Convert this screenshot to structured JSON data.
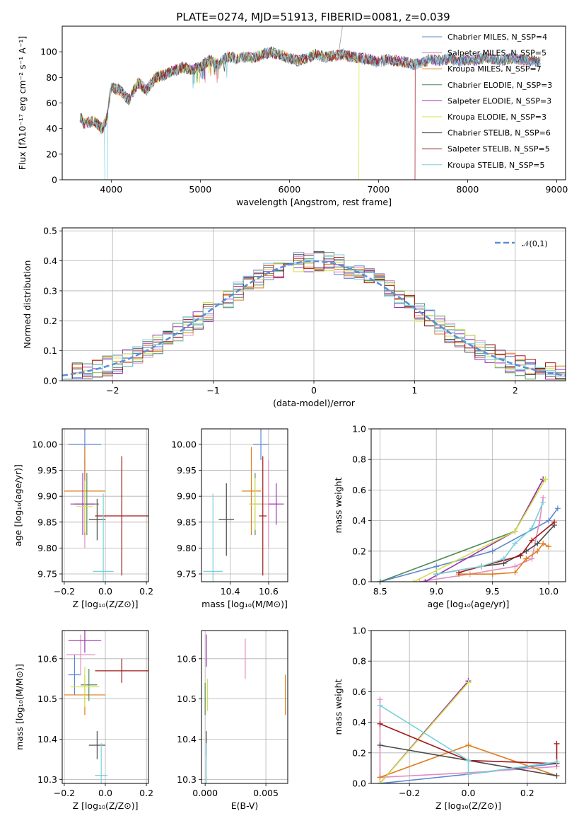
{
  "chart_data": [
    {
      "type": "line",
      "id": "spectrum",
      "title": "PLATE=0274, MJD=51913, FIBERID=0081, z=0.039",
      "xlabel": "wavelength [Angstrom, rest frame]",
      "ylabel": "Flux [fλ10⁻¹⁷ erg cm⁻² s⁻¹ A⁻¹]",
      "xlim": [
        3450,
        9100
      ],
      "ylim": [
        0,
        120
      ],
      "xticks": [
        "4000",
        "5000",
        "6000",
        "7000",
        "8000",
        "9000"
      ],
      "yticks": [
        "0",
        "20",
        "40",
        "60",
        "80",
        "100"
      ],
      "grid": false,
      "legend_position": "top-right",
      "legend": [
        {
          "label": "Chabrier MILES, N_SSP=4",
          "color": "#5b86d0"
        },
        {
          "label": "Salpeter MILES, N_SSP=5",
          "color": "#e28cc2"
        },
        {
          "label": "Kroupa MILES, N_SSP=7",
          "color": "#e07b1a"
        },
        {
          "label": "Chabrier ELODIE, N_SSP=3",
          "color": "#4f8a5b"
        },
        {
          "label": "Salpeter ELODIE, N_SSP=3",
          "color": "#9b30b0"
        },
        {
          "label": "Kroupa ELODIE, N_SSP=3",
          "color": "#d4e04a"
        },
        {
          "label": "Chabrier STELIB, N_SSP=6",
          "color": "#4a4a4a"
        },
        {
          "label": "Salpeter STELIB, N_SSP=5",
          "color": "#a01818"
        },
        {
          "label": "Kroupa STELIB, N_SSP=5",
          "color": "#79d0dc"
        }
      ],
      "envelope": {
        "x": [
          3650,
          3700,
          3800,
          3900,
          3950,
          4000,
          4100,
          4200,
          4300,
          4400,
          4500,
          4600,
          4700,
          4800,
          4900,
          5000,
          5100,
          5200,
          5300,
          5400,
          5500,
          5600,
          5700,
          5800,
          5900,
          6000,
          6100,
          6200,
          6300,
          6400,
          6500,
          6600,
          6700,
          6800,
          6900,
          7000,
          7100,
          7200,
          7300,
          7400,
          7500,
          7600,
          7700,
          7800,
          7900,
          8000,
          8100,
          8200,
          8300,
          8400,
          8500,
          8600,
          8700,
          8800
        ],
        "y": [
          50,
          44,
          46,
          40,
          48,
          72,
          70,
          62,
          76,
          70,
          80,
          82,
          85,
          88,
          86,
          88,
          94,
          90,
          96,
          95,
          96,
          95,
          98,
          100,
          97,
          95,
          93,
          95,
          98,
          96,
          97,
          98,
          96,
          95,
          94,
          92,
          94,
          93,
          92,
          90,
          92,
          94,
          93,
          95,
          92,
          94,
          93,
          96,
          94,
          93,
          95,
          94,
          93,
          92
        ]
      },
      "cutoffs": [
        {
          "color": "#d4e04a",
          "x": 6780
        },
        {
          "color": "#a01818",
          "x": 7410
        },
        {
          "color": "#79d0dc",
          "x": 3940
        }
      ]
    },
    {
      "type": "bar",
      "id": "residual-hist",
      "title": "",
      "xlabel": "(data-model)/error",
      "ylabel": "Normed distribution",
      "xlim": [
        -2.5,
        2.5
      ],
      "ylim": [
        0,
        0.51
      ],
      "xticks": [
        "−2",
        "−1",
        "0",
        "1",
        "2"
      ],
      "yticks": [
        "0.0",
        "0.1",
        "0.2",
        "0.3",
        "0.4",
        "0.5"
      ],
      "grid": true,
      "legend_position": "top-right",
      "legend_label": "𝒩(0,1)",
      "normal_color": "#5b8fd6"
    },
    {
      "type": "scatter",
      "id": "age-vs-Z",
      "xlabel": "Z [log₁₀(Z/Z⊙)]",
      "ylabel": "age  [log₁₀(age/yr)]",
      "xlim": [
        -0.21,
        0.21
      ],
      "ylim": [
        9.735,
        10.03
      ],
      "xticks": [
        "−0.2",
        "0.0",
        "0.2"
      ],
      "yticks": [
        "9.75",
        "9.80",
        "9.85",
        "9.90",
        "9.95",
        "10.00"
      ],
      "grid": true,
      "points": [
        {
          "color": "#5b86d0",
          "x": -0.1,
          "y": 10.0,
          "xerr": 0.08,
          "yerr": 0.07
        },
        {
          "color": "#e28cc2",
          "x": -0.1,
          "y": 9.885,
          "xerr": 0.05,
          "yerr": 0.085
        },
        {
          "color": "#e07b1a",
          "x": -0.1,
          "y": 9.91,
          "xerr": 0.1,
          "yerr": 0.085
        },
        {
          "color": "#4f8a5b",
          "x": -0.09,
          "y": 9.885,
          "xerr": 0.06,
          "yerr": 0.06
        },
        {
          "color": "#9b30b0",
          "x": -0.11,
          "y": 9.885,
          "xerr": 0.06,
          "yerr": 0.06
        },
        {
          "color": "#d4e04a",
          "x": -0.1,
          "y": 9.88,
          "xerr": 0.04,
          "yerr": 0.05
        },
        {
          "color": "#4a4a4a",
          "x": -0.04,
          "y": 9.855,
          "xerr": 0.04,
          "yerr": 0.04
        },
        {
          "color": "#a01818",
          "x": 0.08,
          "y": 9.862,
          "xerr": 0.13,
          "yerr": 0.115
        },
        {
          "color": "#79d0dc",
          "x": -0.01,
          "y": 9.755,
          "xerr": 0.05,
          "yerr": 0.15
        }
      ]
    },
    {
      "type": "scatter",
      "id": "age-vs-mass",
      "xlabel": "mass [log₁₀(M/M⊙)]",
      "ylabel": "",
      "xlim": [
        10.25,
        10.7
      ],
      "ylim": [
        9.735,
        10.03
      ],
      "xticks": [
        "10.4",
        "10.6"
      ],
      "yticks": [
        "9.75",
        "9.80",
        "9.85",
        "9.90",
        "9.95",
        "10.00"
      ],
      "grid": true,
      "points": [
        {
          "color": "#5b86d0",
          "x": 10.56,
          "y": 10.0,
          "xerr": 0.04,
          "yerr": 0.03
        },
        {
          "color": "#e28cc2",
          "x": 10.6,
          "y": 9.885,
          "xerr": 0.05,
          "yerr": 0.085
        },
        {
          "color": "#e07b1a",
          "x": 10.51,
          "y": 9.91,
          "xerr": 0.05,
          "yerr": 0.085
        },
        {
          "color": "#4f8a5b",
          "x": 10.53,
          "y": 9.885,
          "xerr": 0.03,
          "yerr": 0.06
        },
        {
          "color": "#9b30b0",
          "x": 10.64,
          "y": 9.885,
          "xerr": 0.04,
          "yerr": 0.04
        },
        {
          "color": "#d4e04a",
          "x": 10.53,
          "y": 9.885,
          "xerr": 0.03,
          "yerr": 0.05
        },
        {
          "color": "#4a4a4a",
          "x": 10.38,
          "y": 9.855,
          "xerr": 0.04,
          "yerr": 0.07
        },
        {
          "color": "#a01818",
          "x": 10.57,
          "y": 9.862,
          "xerr": 0.02,
          "yerr": 0.115
        },
        {
          "color": "#79d0dc",
          "x": 10.31,
          "y": 9.755,
          "xerr": 0.05,
          "yerr": 0.15
        }
      ]
    },
    {
      "type": "line",
      "id": "massweight-vs-age",
      "xlabel": "age  [log₁₀(age/yr)]",
      "ylabel": "mass weight",
      "xlim": [
        8.42,
        10.15
      ],
      "ylim": [
        0,
        1.0
      ],
      "xticks": [
        "8.5",
        "9.0",
        "9.5",
        "10.0"
      ],
      "yticks": [
        "0.0",
        "0.2",
        "0.4",
        "0.6",
        "0.8",
        "1.0"
      ],
      "grid": true,
      "series": [
        {
          "color": "#5b86d0",
          "x": [
            8.5,
            9.0,
            9.5,
            10.0,
            10.08
          ],
          "y": [
            0.0,
            0.1,
            0.2,
            0.4,
            0.48
          ]
        },
        {
          "color": "#e28cc2",
          "x": [
            8.85,
            9.3,
            9.7,
            9.85,
            9.92,
            9.95
          ],
          "y": [
            0.0,
            0.05,
            0.1,
            0.15,
            0.4,
            0.55
          ]
        },
        {
          "color": "#e07b1a",
          "x": [
            9.2,
            9.5,
            9.7,
            9.8,
            9.9,
            9.95,
            10.0
          ],
          "y": [
            0.05,
            0.05,
            0.06,
            0.15,
            0.2,
            0.25,
            0.23
          ]
        },
        {
          "color": "#4f8a5b",
          "x": [
            8.5,
            9.7,
            9.95
          ],
          "y": [
            0.0,
            0.33,
            0.67
          ]
        },
        {
          "color": "#9b30b0",
          "x": [
            8.9,
            9.7,
            9.95
          ],
          "y": [
            0.0,
            0.33,
            0.67
          ]
        },
        {
          "color": "#d4e04a",
          "x": [
            8.8,
            9.7,
            9.97
          ],
          "y": [
            0.0,
            0.33,
            0.67
          ]
        },
        {
          "color": "#4a4a4a",
          "x": [
            9.0,
            9.4,
            9.6,
            9.8,
            9.9,
            10.05
          ],
          "y": [
            0.05,
            0.1,
            0.12,
            0.2,
            0.25,
            0.37
          ]
        },
        {
          "color": "#a01818",
          "x": [
            9.2,
            9.4,
            9.6,
            9.75,
            9.85,
            10.05
          ],
          "y": [
            0.06,
            0.1,
            0.14,
            0.17,
            0.27,
            0.39
          ]
        },
        {
          "color": "#79d0dc",
          "x": [
            9.0,
            9.4,
            9.6,
            9.7,
            9.85,
            9.95
          ],
          "y": [
            0.05,
            0.1,
            0.15,
            0.25,
            0.35,
            0.52
          ]
        }
      ]
    },
    {
      "type": "scatter",
      "id": "mass-vs-Z",
      "xlabel": "Z [log₁₀(Z/Z⊙)]",
      "ylabel": "mass [log₁₀(M/M⊙)]",
      "xlim": [
        -0.21,
        0.21
      ],
      "ylim": [
        10.29,
        10.67
      ],
      "xticks": [
        "−0.2",
        "0.0",
        "0.2"
      ],
      "yticks": [
        "10.3",
        "10.4",
        "10.5",
        "10.6"
      ],
      "grid": true,
      "points": [
        {
          "color": "#5b86d0",
          "x": -0.15,
          "y": 10.56,
          "xerr": 0.03,
          "yerr": 0.05
        },
        {
          "color": "#e28cc2",
          "x": -0.12,
          "y": 10.61,
          "xerr": 0.07,
          "yerr": 0.05
        },
        {
          "color": "#e07b1a",
          "x": -0.1,
          "y": 10.51,
          "xerr": 0.1,
          "yerr": 0.05
        },
        {
          "color": "#4f8a5b",
          "x": -0.08,
          "y": 10.535,
          "xerr": 0.04,
          "yerr": 0.04
        },
        {
          "color": "#9b30b0",
          "x": -0.1,
          "y": 10.645,
          "xerr": 0.08,
          "yerr": 0.03
        },
        {
          "color": "#d4e04a",
          "x": -0.1,
          "y": 10.53,
          "xerr": 0.07,
          "yerr": 0.05
        },
        {
          "color": "#4a4a4a",
          "x": -0.04,
          "y": 10.385,
          "xerr": 0.04,
          "yerr": 0.035
        },
        {
          "color": "#a01818",
          "x": 0.08,
          "y": 10.57,
          "xerr": 0.13,
          "yerr": 0.03
        },
        {
          "color": "#79d0dc",
          "x": -0.02,
          "y": 10.31,
          "xerr": 0.03,
          "yerr": 0.08
        }
      ]
    },
    {
      "type": "scatter",
      "id": "mass-vs-ebv",
      "xlabel": "E(B-V)",
      "ylabel": "",
      "xlim": [
        -0.0003,
        0.0068
      ],
      "ylim": [
        10.29,
        10.67
      ],
      "xticks": [
        "0.000",
        "0.005"
      ],
      "yticks": [
        "10.3",
        "10.4",
        "10.5",
        "10.6"
      ],
      "grid": true,
      "points": [
        {
          "color": "#9b30b0",
          "x": 0.0001,
          "y": 10.62,
          "xerr": 0,
          "yerr": 0.04
        },
        {
          "color": "#4f8a5b",
          "x": 0.0,
          "y": 10.5,
          "xerr": 0,
          "yerr": 0.04
        },
        {
          "color": "#d4e04a",
          "x": 0.0002,
          "y": 10.51,
          "xerr": 0,
          "yerr": 0.04
        },
        {
          "color": "#4a4a4a",
          "x": 0.0001,
          "y": 10.39,
          "xerr": 0,
          "yerr": 0.03
        },
        {
          "color": "#79d0dc",
          "x": 0.0001,
          "y": 10.34,
          "xerr": 0,
          "yerr": 0.05
        },
        {
          "color": "#e28cc2",
          "x": 0.0033,
          "y": 10.6,
          "xerr": 0,
          "yerr": 0.05
        },
        {
          "color": "#e07b1a",
          "x": 0.0066,
          "y": 10.51,
          "xerr": 0,
          "yerr": 0.05
        }
      ]
    },
    {
      "type": "line",
      "id": "massweight-vs-Z",
      "xlabel": "Z [log₁₀(Z/Z⊙)]",
      "ylabel": "mass weight",
      "xlim": [
        -0.33,
        0.33
      ],
      "ylim": [
        0,
        1.0
      ],
      "xticks": [
        "−0.2",
        "0.0",
        "0.2"
      ],
      "yticks": [
        "0.0",
        "0.2",
        "0.4",
        "0.6",
        "0.8",
        "1.0"
      ],
      "grid": true,
      "series": [
        {
          "color": "#5b86d0",
          "x": [
            -0.3,
            0.0,
            0.3
          ],
          "y": [
            0.0,
            0.06,
            0.13
          ]
        },
        {
          "color": "#e28cc2",
          "x": [
            -0.3,
            -0.3,
            0.0,
            0.3
          ],
          "y": [
            0.55,
            0.04,
            0.07,
            0.11
          ]
        },
        {
          "color": "#e07b1a",
          "x": [
            -0.3,
            0.0,
            0.3
          ],
          "y": [
            0.04,
            0.25,
            0.05
          ]
        },
        {
          "color": "#4f8a5b",
          "x": [
            -0.3,
            0.0
          ],
          "y": [
            0.0,
            0.67
          ]
        },
        {
          "color": "#9b30b0",
          "x": [
            -0.3,
            0.0
          ],
          "y": [
            0.0,
            0.67
          ]
        },
        {
          "color": "#d4e04a",
          "x": [
            -0.3,
            0.0
          ],
          "y": [
            0.0,
            0.66
          ]
        },
        {
          "color": "#4a4a4a",
          "x": [
            -0.3,
            0.3
          ],
          "y": [
            0.25,
            0.05
          ]
        },
        {
          "color": "#a01818",
          "x": [
            -0.3,
            0.0,
            0.3,
            0.3
          ],
          "y": [
            0.39,
            0.15,
            0.13,
            0.26
          ]
        },
        {
          "color": "#79d0dc",
          "x": [
            -0.3,
            0.0,
            0.0,
            0.3
          ],
          "y": [
            0.51,
            0.15,
            0.06,
            0.14
          ]
        }
      ]
    }
  ]
}
